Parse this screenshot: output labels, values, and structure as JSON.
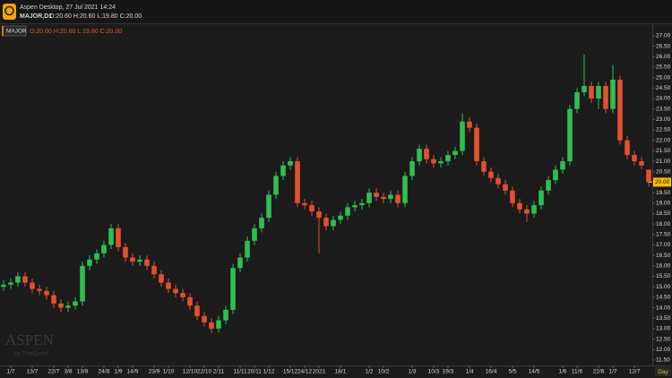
{
  "header": {
    "app_title": "Aspen Desktop, 27 Jul 2021 14:24",
    "symbol_tf": "MAJOR,D1",
    "ohlc_text": "O:20.60 H:20.60 L:19.80 C:20.00"
  },
  "chart_data": {
    "type": "candlestick",
    "watermark": "ASPEN",
    "watermark_sub": "by ThaiQuest",
    "x_unit": "Day",
    "categories": [
      null,
      "1/7",
      null,
      null,
      "13/7",
      null,
      null,
      "22/7",
      null,
      "3/8",
      null,
      "13/8",
      null,
      null,
      "24/8",
      null,
      "1/9",
      null,
      "14/9",
      null,
      null,
      "23/9",
      null,
      "1/10",
      null,
      null,
      "12/10",
      null,
      "22/10",
      null,
      "2/11",
      null,
      null,
      "11/11",
      null,
      "20/11",
      null,
      "1/12",
      null,
      null,
      "15/12",
      null,
      "24/12",
      null,
      "2021",
      null,
      null,
      "18/1",
      null,
      null,
      null,
      "1/2",
      null,
      "10/2",
      null,
      null,
      null,
      "1/3",
      null,
      null,
      "10/3",
      null,
      "19/3",
      null,
      null,
      "1/4",
      null,
      null,
      "16/4",
      null,
      null,
      "5/5",
      null,
      null,
      "14/5",
      null,
      null,
      null,
      "1/6",
      null,
      "11/6",
      null,
      null,
      "22/6",
      null,
      "1/7",
      null,
      null,
      "12/7",
      null,
      null
    ],
    "series": [
      {
        "name": "MAJOR",
        "up_color": "#2fbf4f",
        "down_color": "#e4502f",
        "open": [
          15.0,
          15.1,
          15.2,
          15.5,
          15.2,
          14.9,
          14.8,
          14.6,
          14.2,
          14.0,
          14.1,
          14.3,
          16.0,
          16.3,
          16.6,
          17.0,
          17.8,
          16.9,
          16.4,
          16.2,
          16.3,
          16.0,
          15.6,
          15.2,
          14.9,
          14.7,
          14.5,
          14.1,
          13.6,
          13.3,
          13.0,
          13.4,
          13.9,
          15.9,
          16.4,
          17.2,
          17.8,
          18.3,
          19.4,
          20.3,
          20.8,
          21.0,
          19.0,
          18.9,
          18.6,
          18.3,
          17.9,
          18.2,
          18.4,
          18.8,
          18.9,
          19.0,
          19.5,
          19.3,
          19.2,
          19.4,
          19.0,
          20.3,
          21.0,
          21.6,
          21.1,
          20.9,
          21.0,
          21.3,
          21.5,
          22.9,
          22.6,
          21.0,
          20.5,
          20.2,
          19.9,
          19.6,
          19.0,
          18.7,
          18.5,
          18.9,
          19.6,
          20.1,
          20.6,
          21.0,
          23.5,
          24.3,
          24.6,
          24.0,
          24.6,
          23.5,
          24.9,
          22.0,
          21.3,
          21.0,
          20.6
        ],
        "high": [
          15.3,
          15.4,
          15.7,
          15.7,
          15.4,
          15.1,
          15.0,
          14.8,
          14.4,
          14.3,
          14.5,
          16.2,
          16.5,
          16.8,
          17.2,
          18.0,
          18.0,
          17.1,
          16.6,
          16.5,
          16.5,
          16.2,
          15.8,
          15.4,
          15.1,
          14.9,
          14.7,
          14.3,
          13.8,
          13.5,
          13.6,
          14.1,
          16.1,
          16.6,
          17.4,
          18.0,
          18.5,
          19.6,
          20.5,
          21.0,
          21.2,
          21.2,
          19.2,
          19.1,
          18.8,
          18.5,
          18.4,
          18.6,
          19.0,
          19.1,
          19.2,
          19.7,
          19.7,
          19.5,
          19.6,
          19.6,
          20.5,
          21.2,
          21.8,
          21.8,
          21.3,
          21.2,
          21.5,
          21.7,
          23.3,
          23.1,
          22.8,
          21.2,
          20.7,
          20.4,
          20.1,
          19.8,
          19.2,
          18.9,
          19.1,
          19.8,
          20.3,
          20.8,
          21.2,
          23.7,
          24.5,
          26.1,
          24.8,
          24.8,
          24.8,
          25.6,
          25.1,
          22.2,
          21.5,
          21.2,
          20.6
        ],
        "low": [
          14.8,
          14.9,
          15.0,
          15.0,
          14.7,
          14.6,
          14.4,
          14.0,
          13.8,
          13.8,
          13.9,
          14.1,
          15.8,
          16.1,
          16.4,
          16.8,
          16.7,
          16.2,
          16.0,
          16.0,
          15.8,
          15.4,
          15.0,
          14.7,
          14.5,
          14.3,
          13.9,
          13.4,
          13.1,
          12.8,
          12.8,
          13.2,
          13.7,
          15.7,
          16.2,
          17.0,
          17.6,
          18.1,
          19.2,
          20.1,
          20.6,
          18.8,
          18.7,
          18.4,
          16.6,
          17.7,
          17.7,
          18.0,
          18.2,
          18.6,
          18.7,
          18.8,
          19.1,
          19.0,
          19.0,
          18.8,
          18.8,
          20.1,
          20.8,
          20.9,
          20.7,
          20.7,
          20.8,
          21.1,
          21.3,
          22.4,
          20.8,
          20.3,
          20.0,
          19.7,
          19.4,
          18.8,
          18.5,
          18.1,
          18.3,
          18.7,
          19.4,
          19.9,
          20.4,
          20.8,
          23.3,
          24.1,
          23.8,
          23.5,
          23.3,
          23.3,
          21.8,
          21.1,
          20.8,
          20.6,
          19.8
        ],
        "close": [
          15.1,
          15.2,
          15.5,
          15.2,
          14.9,
          14.8,
          14.6,
          14.2,
          14.0,
          14.1,
          14.3,
          16.0,
          16.3,
          16.6,
          17.0,
          17.8,
          16.9,
          16.4,
          16.2,
          16.3,
          16.0,
          15.6,
          15.2,
          14.9,
          14.7,
          14.5,
          14.1,
          13.6,
          13.3,
          13.0,
          13.4,
          13.9,
          15.9,
          16.4,
          17.2,
          17.8,
          18.3,
          19.4,
          20.3,
          20.8,
          21.0,
          19.0,
          18.9,
          18.6,
          18.3,
          17.9,
          18.2,
          18.4,
          18.8,
          18.9,
          19.0,
          19.5,
          19.3,
          19.2,
          19.4,
          19.0,
          20.3,
          21.0,
          21.6,
          21.1,
          20.9,
          21.0,
          21.3,
          21.5,
          22.9,
          22.6,
          21.0,
          20.5,
          20.2,
          19.9,
          19.6,
          19.0,
          18.7,
          18.5,
          18.9,
          19.6,
          20.1,
          20.6,
          21.0,
          23.5,
          24.3,
          24.6,
          24.0,
          24.6,
          23.5,
          24.9,
          22.0,
          21.3,
          21.0,
          20.8,
          20.0
        ]
      }
    ],
    "last_price": {
      "value": 20.0,
      "label": "20.00"
    },
    "ylim": [
      11.24,
      27.51
    ],
    "yticks": [
      {
        "value": 11.5,
        "label": "11.50"
      },
      {
        "value": 12,
        "label": "12.00"
      },
      {
        "value": 12.5,
        "label": "12.50"
      },
      {
        "value": 13,
        "label": "13.00"
      },
      {
        "value": 13.5,
        "label": "13.50"
      },
      {
        "value": 14,
        "label": "14.00"
      },
      {
        "value": 14.5,
        "label": "14.50"
      },
      {
        "value": 15,
        "label": "15.00"
      },
      {
        "value": 15.5,
        "label": "15.50"
      },
      {
        "value": 16,
        "label": "16.00"
      },
      {
        "value": 16.5,
        "label": "16.50"
      },
      {
        "value": 17,
        "label": "17.00"
      },
      {
        "value": 17.5,
        "label": "17.50"
      },
      {
        "value": 18,
        "label": "18.00"
      },
      {
        "value": 18.5,
        "label": "18.50"
      },
      {
        "value": 19,
        "label": "19.00"
      },
      {
        "value": 19.5,
        "label": "19.50"
      },
      {
        "value": 20,
        "label": "20.00"
      },
      {
        "value": 20.5,
        "label": "20.50"
      },
      {
        "value": 21,
        "label": "21.00"
      },
      {
        "value": 21.5,
        "label": "21.50"
      },
      {
        "value": 22,
        "label": "22.00"
      },
      {
        "value": 22.5,
        "label": "22.50"
      },
      {
        "value": 23,
        "label": "23.00"
      },
      {
        "value": 23.5,
        "label": "23.50"
      },
      {
        "value": 24,
        "label": "24.00"
      },
      {
        "value": 24.5,
        "label": "24.50"
      },
      {
        "value": 25,
        "label": "25.00"
      },
      {
        "value": 25.5,
        "label": "25.50"
      },
      {
        "value": 26,
        "label": "26.00"
      },
      {
        "value": 26.5,
        "label": "26.50"
      },
      {
        "value": 27,
        "label": "27.00"
      }
    ]
  }
}
